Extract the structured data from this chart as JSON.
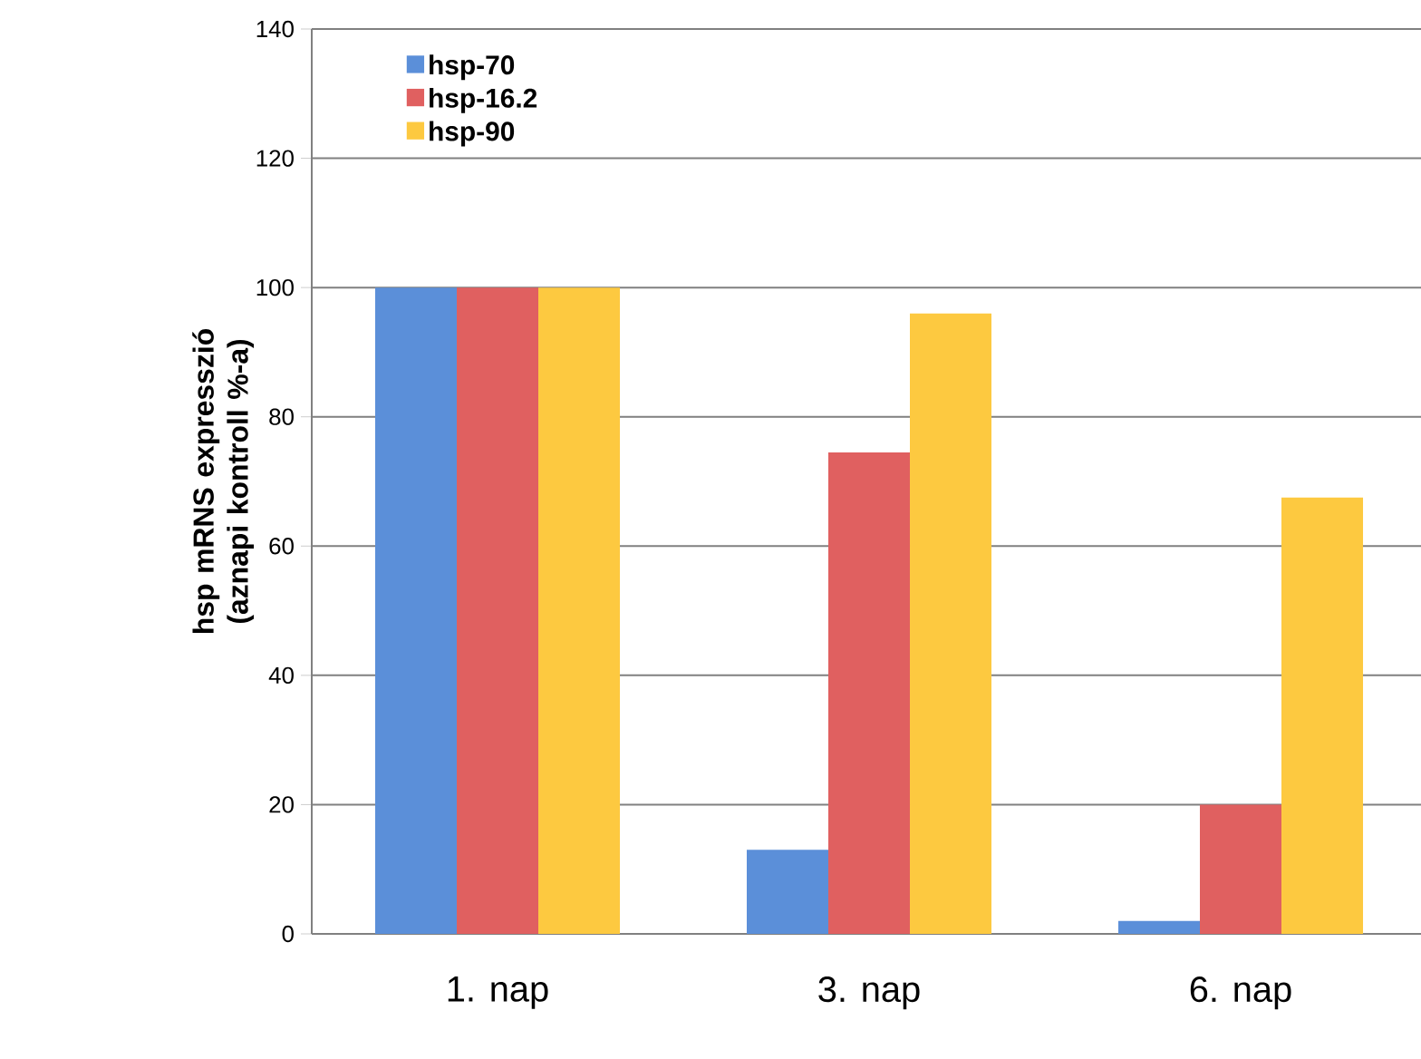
{
  "chart_data": {
    "type": "bar",
    "ylabel": "hsp mRNS expresszió (aznapi kontroll %-a)",
    "categories": [
      "1. nap",
      "3. nap",
      "6. nap"
    ],
    "series": [
      {
        "name": "hsp-70",
        "color": "#5b8fd9",
        "values": [
          100,
          13,
          2
        ]
      },
      {
        "name": "hsp-16.2",
        "color": "#e06060",
        "values": [
          100,
          74.5,
          20
        ]
      },
      {
        "name": "hsp-90",
        "color": "#fdc940",
        "values": [
          100,
          96,
          67.5
        ]
      }
    ],
    "ylim": [
      0,
      140
    ],
    "yticks": [
      0,
      20,
      40,
      60,
      80,
      100,
      120,
      140
    ],
    "grid": "y",
    "legend": "top left"
  }
}
